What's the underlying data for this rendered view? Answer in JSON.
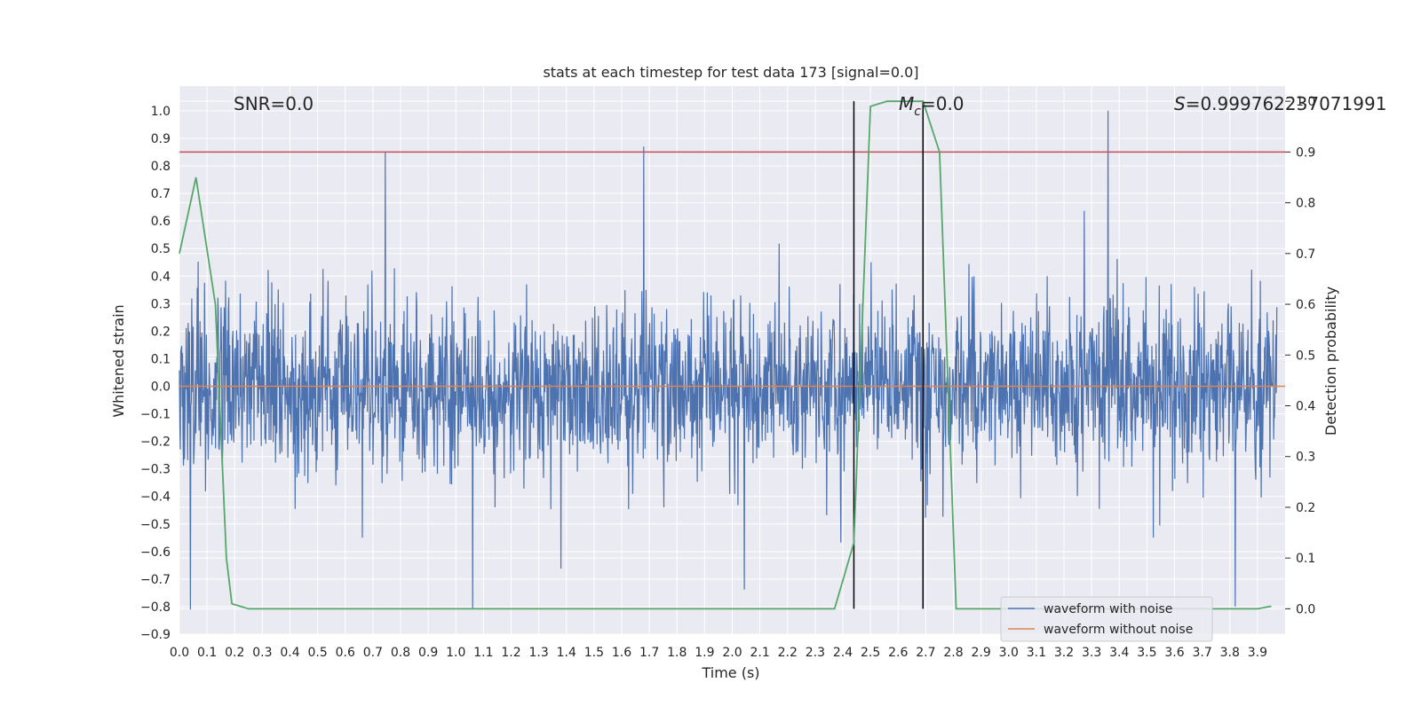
{
  "chart_data": {
    "type": "line",
    "title": "stats at each timestep for test data 173 [signal=0.0]",
    "xlabel": "Time (s)",
    "ylabel": "Whitened strain",
    "y2label": "Detection probability",
    "xlim": [
      0.0,
      4.0
    ],
    "ylim": [
      -0.9,
      1.09
    ],
    "y2lim": [
      -0.05,
      1.03
    ],
    "x_ticks": [
      0.0,
      0.1,
      0.2,
      0.3,
      0.4,
      0.5,
      0.6,
      0.7,
      0.8,
      0.9,
      1.0,
      1.1,
      1.2,
      1.3,
      1.4,
      1.5,
      1.6,
      1.7,
      1.8,
      1.9,
      2.0,
      2.1,
      2.2,
      2.3,
      2.4,
      2.5,
      2.6,
      2.7,
      2.8,
      2.9,
      3.0,
      3.1,
      3.2,
      3.3,
      3.4,
      3.5,
      3.6,
      3.7,
      3.8,
      3.9
    ],
    "x_tick_labels": [
      "0.0",
      "0.1",
      "0.2",
      "0.3",
      "0.4",
      "0.5",
      "0.6",
      "0.7",
      "0.8",
      "0.9",
      "1.0",
      "1.1",
      "1.2",
      "1.3",
      "1.4",
      "1.5",
      "1.6",
      "1.7",
      "1.8",
      "1.9",
      "2.0",
      "2.1",
      "2.2",
      "2.3",
      "2.4",
      "2.5",
      "2.6",
      "2.7",
      "2.8",
      "2.9",
      "3.0",
      "3.1",
      "3.2",
      "3.3",
      "3.4",
      "3.5",
      "3.6",
      "3.7",
      "3.8",
      "3.9"
    ],
    "y_ticks": [
      -0.9,
      -0.8,
      -0.7,
      -0.6,
      -0.5,
      -0.4,
      -0.3,
      -0.2,
      -0.1,
      0.0,
      0.1,
      0.2,
      0.3,
      0.4,
      0.5,
      0.6,
      0.7,
      0.8,
      0.9,
      1.0
    ],
    "y_tick_labels": [
      "−0.9",
      "−0.8",
      "−0.7",
      "−0.6",
      "−0.5",
      "−0.4",
      "−0.3",
      "−0.2",
      "−0.1",
      "0.0",
      "0.1",
      "0.2",
      "0.3",
      "0.4",
      "0.5",
      "0.6",
      "0.7",
      "0.8",
      "0.9",
      "1.0"
    ],
    "y2_ticks": [
      0.0,
      0.1,
      0.2,
      0.3,
      0.4,
      0.5,
      0.6,
      0.7,
      0.8,
      0.9,
      1.0
    ],
    "y2_tick_labels": [
      "0.0",
      "0.1",
      "0.2",
      "0.3",
      "0.4",
      "0.5",
      "0.6",
      "0.7",
      "0.8",
      "0.9",
      "1.0"
    ],
    "grid": true,
    "legend_position": "bottom-right",
    "annotations": {
      "snr": "SNR=0.0",
      "mc_symbol": "M",
      "mc_sub": "c",
      "mc_value": "=0.0",
      "s_symbol": "S",
      "s_value": "=0.999762237071991"
    },
    "threshold_y2": 0.9,
    "vertical_lines_x": [
      2.44,
      2.69
    ],
    "series": [
      {
        "name": "waveform with noise",
        "color": "#4c72b0",
        "axis": "left",
        "description": "dense noise trace",
        "peaks": [
          {
            "x": 1.68,
            "y": 0.87
          },
          {
            "x": 3.36,
            "y": 1.0
          },
          {
            "x": 1.06,
            "y": -0.81
          },
          {
            "x": 3.82,
            "y": -0.8
          },
          {
            "x": 0.04,
            "y": -0.81
          }
        ]
      },
      {
        "name": "waveform without noise",
        "color": "#dd8452",
        "axis": "left",
        "values_constant": 0.0
      },
      {
        "name": "detection probability",
        "color": "#55a868",
        "axis": "right",
        "x": [
          0.0,
          0.06,
          0.13,
          0.17,
          0.19,
          0.25,
          1.0,
          2.0,
          2.37,
          2.44,
          2.5,
          2.56,
          2.63,
          2.69,
          2.75,
          2.81,
          2.9,
          3.0,
          3.5,
          3.9,
          3.95
        ],
        "y": [
          0.7,
          0.85,
          0.6,
          0.1,
          0.01,
          0.0,
          0.0,
          0.0,
          0.0,
          0.13,
          0.99,
          1.0,
          1.0,
          1.0,
          0.9,
          0.0,
          0.0,
          0.0,
          0.0,
          0.0,
          0.005
        ]
      }
    ],
    "threshold_color": "#c44e52",
    "vline_color": "#000000",
    "legend": [
      {
        "label": "waveform with noise",
        "color": "#4c72b0"
      },
      {
        "label": "waveform without noise",
        "color": "#dd8452"
      }
    ]
  }
}
